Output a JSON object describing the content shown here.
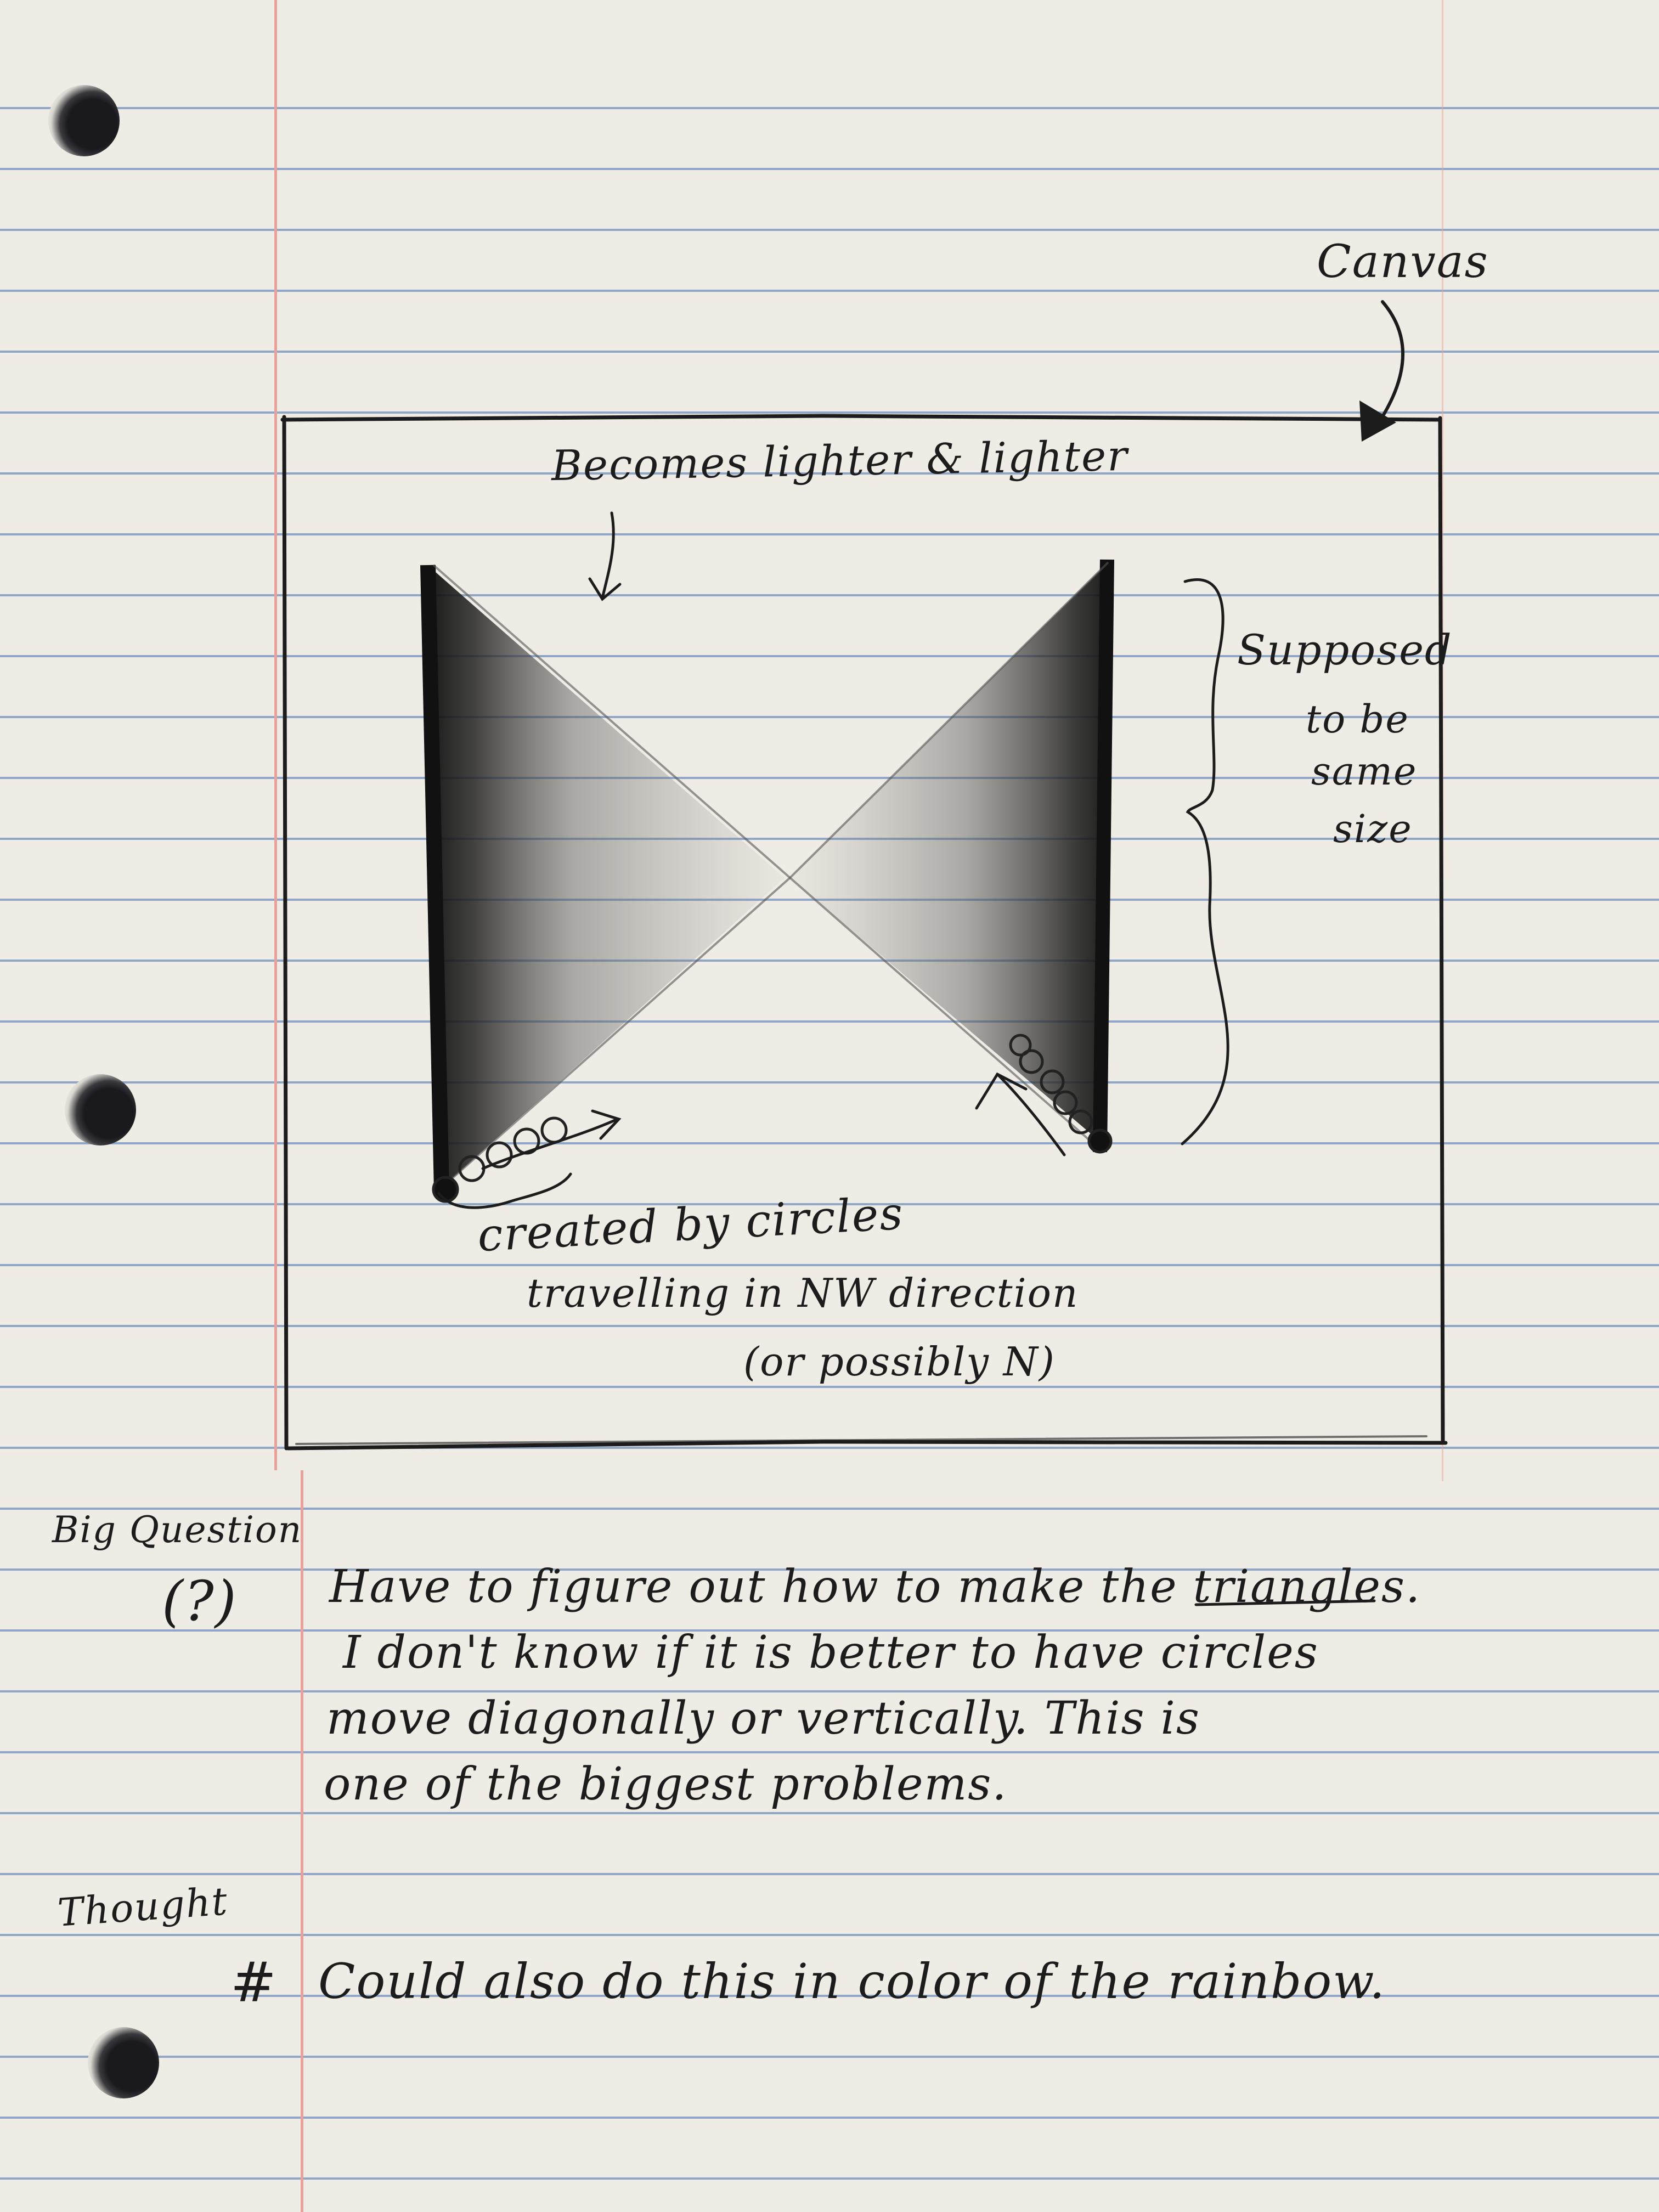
{
  "notes": {
    "canvas_label": "Canvas",
    "lighter_label": "Becomes lighter & lighter",
    "same_size_label": [
      "Supposed",
      "to be",
      "same",
      "size"
    ],
    "circles_label": [
      "created by circles",
      "travelling in NW direction",
      "(or possibly N)"
    ],
    "big_question_label": "Big Question",
    "question_mark": "(?)",
    "question_text": [
      "Have to figure out how to make the triangles.",
      "I don't know if it is better to have circles",
      "move diagonally or vertically. This is",
      "one of the biggest problems."
    ],
    "thought_label": "Thought",
    "thought_bullet": "#",
    "thought_text": "Could also do this in color of the rainbow."
  },
  "colors": {
    "paper": "#efece5",
    "rule_line": "#8fa6c6",
    "margin_line": "#e7a39b",
    "pencil": "#1c1c1c"
  }
}
